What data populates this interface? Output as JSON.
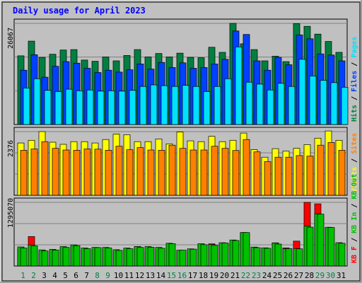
{
  "title": "Daily usage for April 2023",
  "colors": {
    "background": "#c0c0c0",
    "plot_bg": "#c0c0c0",
    "title": "#0000ff",
    "hits": "#008040",
    "files": "#0040ff",
    "pages": "#00e0ff",
    "visits": "#ffff00",
    "sites": "#ff8000",
    "kb_in": "#00c000",
    "kb_out": "#00c000",
    "kb_f": "#ff0000",
    "label_text": "#000000"
  },
  "chart_data": [
    {
      "type": "bar",
      "name": "hits-files-pages",
      "x": [
        "1",
        "2",
        "3",
        "4",
        "5",
        "6",
        "7",
        "8",
        "9",
        "10",
        "11",
        "12",
        "13",
        "14",
        "15",
        "16",
        "17",
        "18",
        "19",
        "20",
        "21",
        "22",
        "23",
        "24",
        "25",
        "26",
        "27",
        "28",
        "29",
        "30",
        "31"
      ],
      "series": [
        {
          "name": "Hits",
          "values": [
            17700,
            21500,
            17300,
            18100,
            19200,
            19300,
            16600,
            16300,
            17400,
            16400,
            17800,
            19300,
            17400,
            18300,
            17400,
            18400,
            17300,
            17200,
            19900,
            18600,
            26067,
            20800,
            19300,
            16400,
            17600,
            16200,
            26000,
            25300,
            23300,
            21400,
            18600
          ]
        },
        {
          "name": "Files",
          "values": [
            14000,
            18000,
            12200,
            15000,
            16200,
            15800,
            14500,
            13400,
            14000,
            13500,
            14100,
            15600,
            14300,
            16000,
            14700,
            15900,
            14500,
            14700,
            15600,
            16800,
            24100,
            23200,
            16400,
            14000,
            17300,
            15400,
            23100,
            22100,
            18200,
            17900,
            16400
          ]
        },
        {
          "name": "Pages",
          "values": [
            9400,
            11800,
            8800,
            8500,
            9100,
            8700,
            8900,
            8600,
            8700,
            8600,
            8800,
            9800,
            10200,
            10000,
            9800,
            10100,
            9800,
            8500,
            9800,
            11800,
            20000,
            10900,
            10400,
            8900,
            10600,
            9800,
            16800,
            12500,
            11400,
            10800,
            9600
          ]
        }
      ],
      "ymax": 26067,
      "ylabel_max": "26067",
      "right_labels": [
        "Hits",
        "/",
        "Files",
        "/",
        "Pages"
      ]
    },
    {
      "type": "bar",
      "name": "visits-sites",
      "series": [
        {
          "name": "Visits",
          "values": [
            1950,
            2050,
            2376,
            1980,
            1900,
            2000,
            2000,
            1950,
            2080,
            2280,
            2260,
            2000,
            2000,
            2100,
            1920,
            2360,
            2030,
            2000,
            2200,
            2000,
            2050,
            2320,
            1700,
            1420,
            1740,
            1650,
            1750,
            1890,
            2130,
            2400,
            2050
          ]
        },
        {
          "name": "Sites",
          "values": [
            1680,
            1730,
            2000,
            1750,
            1690,
            1680,
            1730,
            1720,
            1680,
            1830,
            1700,
            1780,
            1690,
            1680,
            1870,
            1750,
            1690,
            1690,
            1830,
            1750,
            1670,
            2080,
            1620,
            1260,
            1420,
            1420,
            1480,
            1460,
            1870,
            1970,
            1680
          ]
        }
      ],
      "ymax": 2376,
      "ylabel_max": "2376",
      "right_labels": [
        "Visits",
        "/",
        "Sites"
      ]
    },
    {
      "type": "bar",
      "name": "kbytes",
      "series": [
        {
          "name": "KB F",
          "values": [
            353000,
            600000,
            281000,
            299000,
            339000,
            394000,
            326000,
            339000,
            353000,
            303000,
            358000,
            395000,
            283000,
            313000,
            382000,
            311000,
            326000,
            425000,
            451000,
            438000,
            437000,
            680000,
            383000,
            367000,
            472000,
            368000,
            507000,
            1295070,
            1265000,
            782000,
            442000
          ]
        },
        {
          "name": "KB In",
          "values": [
            389000,
            429000,
            328000,
            339000,
            396000,
            430000,
            367000,
            380000,
            378000,
            333000,
            366000,
            395000,
            395000,
            380000,
            464000,
            323000,
            349000,
            454000,
            438000,
            475000,
            530000,
            680000,
            385000,
            370000,
            468000,
            354000,
            355000,
            810000,
            1060000,
            788000,
            475000
          ]
        },
        {
          "name": "KB Out",
          "values": [
            365000,
            410000,
            308000,
            325000,
            379000,
            415000,
            356000,
            375000,
            369000,
            318000,
            352000,
            378000,
            383000,
            361000,
            454000,
            323000,
            344000,
            434000,
            420000,
            469000,
            520000,
            680000,
            374000,
            361000,
            446000,
            354000,
            350000,
            790000,
            1055000,
            784000,
            464000
          ]
        }
      ],
      "ymax": 1295070,
      "ylabel_max": "1295070",
      "right_labels": [
        "KB F",
        "/",
        "KB In",
        "/",
        "KB Out"
      ]
    }
  ],
  "x_axis": {
    "labels": [
      "1",
      "2",
      "3",
      "4",
      "5",
      "6",
      "7",
      "8",
      "9",
      "10",
      "11",
      "12",
      "13",
      "14",
      "15",
      "16",
      "17",
      "18",
      "19",
      "20",
      "21",
      "22",
      "23",
      "24",
      "25",
      "26",
      "27",
      "28",
      "29",
      "30",
      "31"
    ],
    "weekend_days": [
      "1",
      "2",
      "8",
      "9",
      "15",
      "16",
      "22",
      "23",
      "29",
      "30"
    ]
  }
}
